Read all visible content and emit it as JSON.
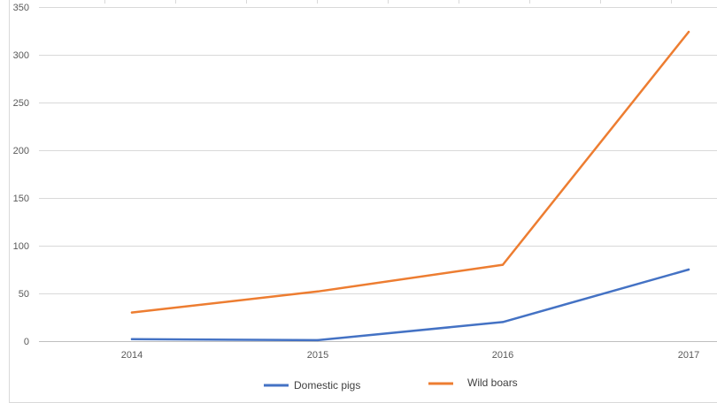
{
  "chart_data": {
    "type": "line",
    "categories": [
      "2014",
      "2015",
      "2016",
      "2017"
    ],
    "series": [
      {
        "name": "Domestic pigs",
        "values": [
          2,
          1,
          20,
          75
        ],
        "color": "#4472C4"
      },
      {
        "name": "Wild boars",
        "values": [
          30,
          52,
          80,
          324
        ],
        "color": "#ED7D31"
      }
    ],
    "yticks": [
      "0",
      "50",
      "100",
      "150",
      "200",
      "250",
      "300",
      "350"
    ],
    "ylim": [
      0,
      350
    ],
    "grid": true,
    "legend_position": "bottom",
    "title": "",
    "xlabel": "",
    "ylabel": ""
  }
}
